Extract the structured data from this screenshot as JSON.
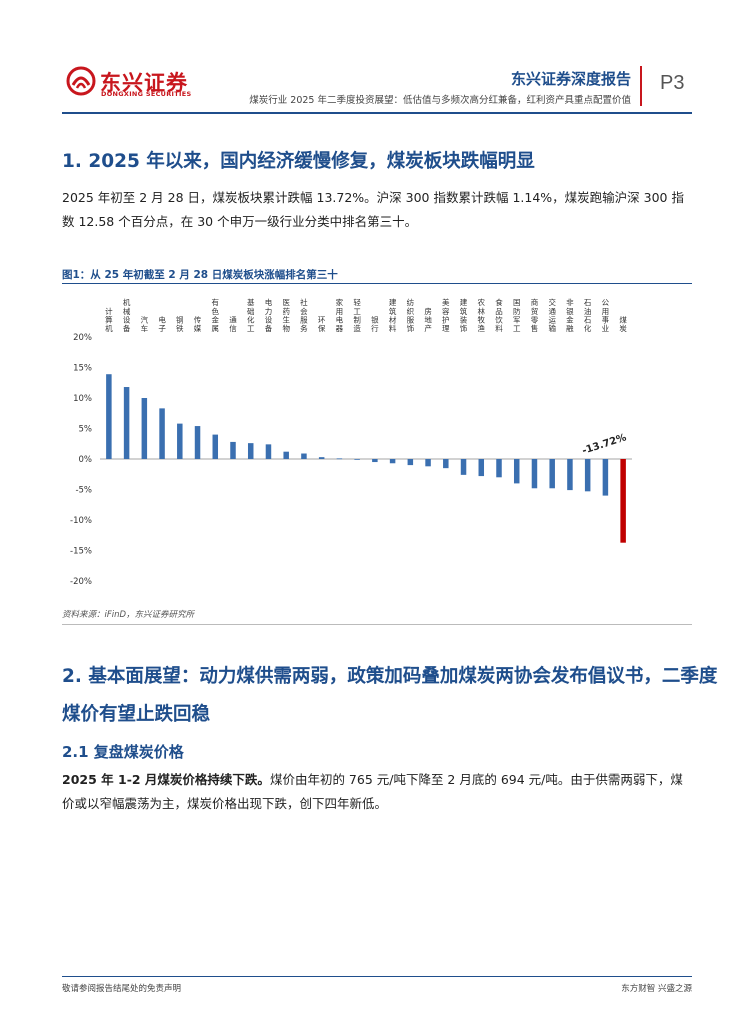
{
  "header": {
    "brand_name": "东兴证券",
    "brand_en": "DONGXING SECURITIES",
    "report_type": "东兴证券深度报告",
    "subtitle": "煤炭行业 2025 年二季度投资展望：低估值与多频次高分红兼备，红利资产具重点配置价值",
    "page": "P3",
    "brand_color": "#c8161d",
    "accent_color": "#1f4e8c"
  },
  "section1": {
    "title": "1. 2025 年以来，国内经济缓慢修复，煤炭板块跌幅明显",
    "paragraph": "2025 年初至 2 月 28 日，煤炭板块累计跌幅 13.72%。沪深 300 指数累计跌幅 1.14%，煤炭跑输沪深 300 指数 12.58 个百分点，在 30 个申万一级行业分类中排名第三十。"
  },
  "figure1": {
    "title": "图1：从 25 年初截至 2 月 28 日煤炭板块涨幅排名第三十",
    "source": "资料来源：iFinD，东兴证券研究所",
    "annotation": "-13.72%"
  },
  "chart_data": {
    "type": "bar",
    "categories": [
      "计算机",
      "机械设备",
      "汽车",
      "电子",
      "钢铁",
      "传媒",
      "有色金属",
      "通信",
      "基础化工",
      "电力设备",
      "医药生物",
      "社会服务",
      "环保",
      "家用电器",
      "轻工制造",
      "银行",
      "建筑材料",
      "纺织服饰",
      "房地产",
      "美容护理",
      "建筑装饰",
      "农林牧渔",
      "食品饮料",
      "国防军工",
      "商贸零售",
      "交通运输",
      "非银金融",
      "石油石化",
      "公用事业",
      "煤炭"
    ],
    "values": [
      13.9,
      11.8,
      10.0,
      8.3,
      5.8,
      5.4,
      4.0,
      2.8,
      2.6,
      2.4,
      1.2,
      0.9,
      0.3,
      0.1,
      -0.1,
      -0.5,
      -0.7,
      -1.0,
      -1.2,
      -1.5,
      -2.6,
      -2.8,
      -3.0,
      -4.0,
      -4.8,
      -4.8,
      -5.1,
      -5.3,
      -6.0,
      -13.72
    ],
    "yticks": [
      "20%",
      "15%",
      "10%",
      "5%",
      "0%",
      "-5%",
      "-10%",
      "-15%",
      "-20%"
    ],
    "ylim": [
      -20,
      20
    ],
    "bar_color": "#3a6fb0",
    "highlight_color": "#c00000",
    "highlight_category": "煤炭",
    "legend": false
  },
  "section2": {
    "title_line1": "2. 基本面展望：动力煤供需两弱，政策加码叠加煤炭两协会发布倡议书，二季度",
    "title_line2": "煤价有望止跌回稳",
    "sub_title": "2.1 复盘煤炭价格",
    "paragraph_bold": "2025 年 1-2 月煤炭价格持续下跌。",
    "paragraph_rest": "煤价由年初的 765 元/吨下降至 2 月底的 694 元/吨。由于供需两弱下，煤价或以窄幅震荡为主，煤炭价格出现下跌，创下四年新低。"
  },
  "footer": {
    "left": "敬请参阅报告结尾处的免责声明",
    "right": "东方财智 兴盛之源"
  }
}
